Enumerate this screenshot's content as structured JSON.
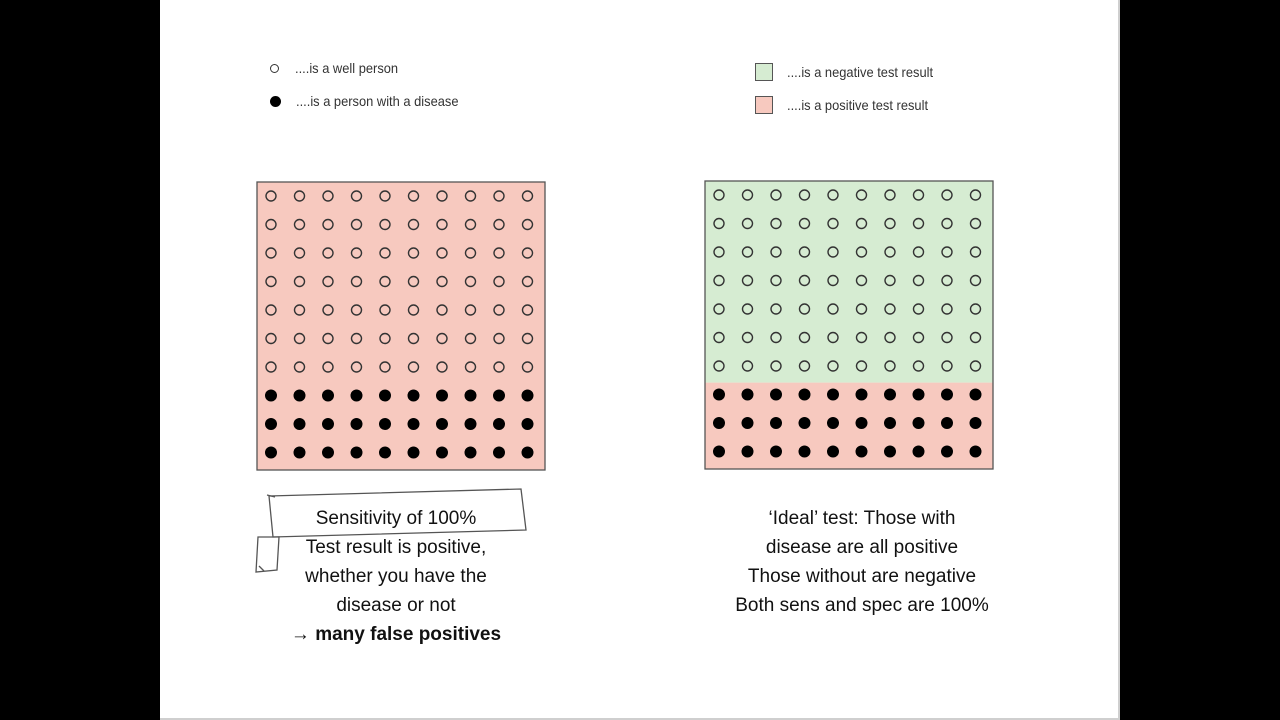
{
  "legend": {
    "well": "....is a well person",
    "disease": "....is a person with a disease",
    "negative": "....is a negative test result",
    "positive": "....is a positive test result"
  },
  "colors": {
    "negative": "#d6ecd2",
    "positive": "#f7c9bf",
    "border": "#555555"
  },
  "grids": [
    {
      "rows": 10,
      "cols": 10,
      "well_rows": 7,
      "disease_rows": 3,
      "positive_rows": 10,
      "negative_rows": 0
    },
    {
      "rows": 10,
      "cols": 10,
      "well_rows": 7,
      "disease_rows": 3,
      "positive_rows": 3,
      "negative_rows": 7
    }
  ],
  "captions": {
    "left": {
      "line1": "Sensitivity of 100%",
      "line2": "Test result is positive,",
      "line3": "whether you have the",
      "line4": "disease or not",
      "line5_arrow": "→",
      "line5_bold": "many false positives"
    },
    "right": {
      "line1": "‘Ideal’ test:  Those with",
      "line2": "disease are all positive",
      "line3": "Those without are negative",
      "line4": "Both sens and spec are 100%"
    }
  }
}
